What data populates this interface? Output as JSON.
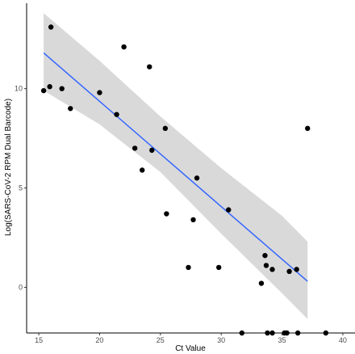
{
  "chart_data": {
    "type": "scatter",
    "xlabel": "Ct Value",
    "ylabel": "Log(SARS-CoV-2 RPM Dual Barcode)",
    "xlim": [
      14,
      41
    ],
    "ylim": [
      -2.3,
      14.3
    ],
    "x_ticks": [
      15,
      20,
      25,
      30,
      35,
      40
    ],
    "y_ticks": [
      0,
      5,
      10
    ],
    "grid": false,
    "points": [
      {
        "x": 15.4,
        "y": 9.9
      },
      {
        "x": 15.9,
        "y": 10.1
      },
      {
        "x": 16.0,
        "y": 13.1
      },
      {
        "x": 16.9,
        "y": 10.0
      },
      {
        "x": 17.6,
        "y": 9.0
      },
      {
        "x": 20.0,
        "y": 9.8
      },
      {
        "x": 21.4,
        "y": 8.7
      },
      {
        "x": 22.0,
        "y": 12.1
      },
      {
        "x": 22.9,
        "y": 7.0
      },
      {
        "x": 23.5,
        "y": 5.9
      },
      {
        "x": 24.1,
        "y": 11.1
      },
      {
        "x": 24.3,
        "y": 6.9
      },
      {
        "x": 25.4,
        "y": 8.0
      },
      {
        "x": 25.5,
        "y": 3.7
      },
      {
        "x": 27.3,
        "y": 1.0
      },
      {
        "x": 27.7,
        "y": 3.4
      },
      {
        "x": 28.0,
        "y": 5.5
      },
      {
        "x": 29.8,
        "y": 1.0
      },
      {
        "x": 30.6,
        "y": 3.9
      },
      {
        "x": 31.7,
        "y": -2.3
      },
      {
        "x": 33.3,
        "y": 0.2
      },
      {
        "x": 33.6,
        "y": 1.6
      },
      {
        "x": 33.7,
        "y": 1.1
      },
      {
        "x": 33.8,
        "y": -2.3
      },
      {
        "x": 34.2,
        "y": 0.9
      },
      {
        "x": 34.2,
        "y": -2.3
      },
      {
        "x": 35.2,
        "y": -2.3
      },
      {
        "x": 35.4,
        "y": -2.3
      },
      {
        "x": 35.6,
        "y": 0.8
      },
      {
        "x": 36.2,
        "y": 0.9
      },
      {
        "x": 36.3,
        "y": -2.3
      },
      {
        "x": 37.1,
        "y": 8.0
      },
      {
        "x": 38.6,
        "y": -2.3
      }
    ],
    "regression": {
      "x": [
        15.4,
        37.1
      ],
      "y": [
        11.8,
        0.3
      ],
      "line_color": "#3366ff",
      "band_color": "#d9d9d9"
    },
    "confidence_band": {
      "x": [
        15.4,
        20,
        25,
        30,
        35,
        37.1
      ],
      "upper": [
        13.8,
        11.4,
        8.6,
        6.0,
        3.6,
        2.3
      ],
      "lower": [
        9.9,
        8.2,
        5.8,
        2.7,
        -0.3,
        -1.6
      ]
    }
  }
}
